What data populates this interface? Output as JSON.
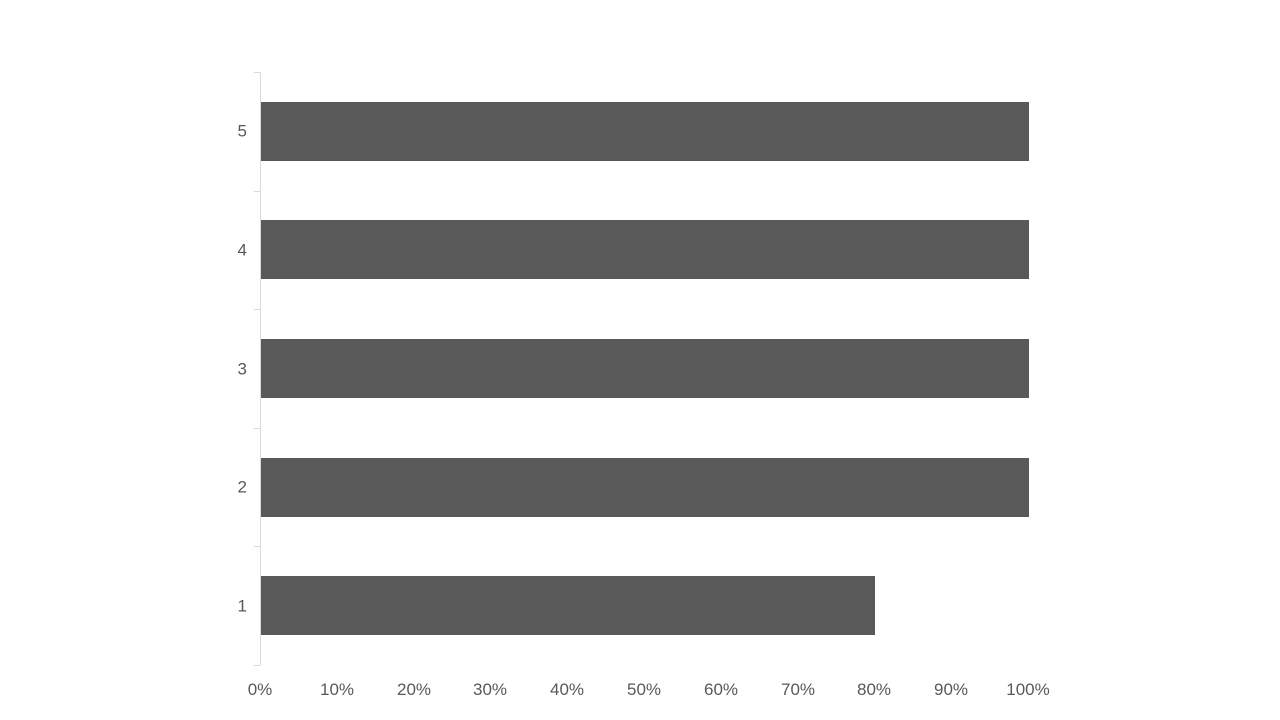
{
  "chart_data": {
    "type": "bar",
    "orientation": "horizontal",
    "title": "",
    "categories": [
      "5",
      "4",
      "3",
      "2",
      "1"
    ],
    "values": [
      100,
      100,
      100,
      100,
      80
    ],
    "xlabel": "",
    "ylabel": "",
    "xlim": [
      0,
      100
    ],
    "x_tick_labels": [
      "0%",
      "10%",
      "20%",
      "30%",
      "40%",
      "50%",
      "60%",
      "70%",
      "80%",
      "90%",
      "100%"
    ],
    "grid": false,
    "legend": false,
    "colors": {
      "bar": "#595959",
      "axis": "#d9d9d9",
      "label": "#595959",
      "background": "#ffffff"
    }
  }
}
